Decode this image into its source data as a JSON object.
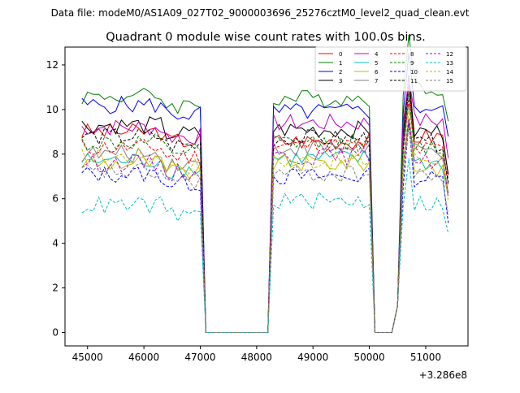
{
  "chart_data": {
    "type": "line",
    "suptitle": "Data file: modeM0/AS1A09_027T02_9000003696_25276cztM0_level2_quad_clean.evt",
    "title": "Quadrant 0 module wise count rates with 100.0s bins.",
    "xlabel": "",
    "ylabel": "",
    "x_offset_label": "+3.286e8",
    "xlim": [
      44600,
      51750
    ],
    "ylim": [
      -0.6,
      12.8
    ],
    "xticks": [
      45000,
      46000,
      47000,
      48000,
      49000,
      50000,
      51000
    ],
    "yticks": [
      0,
      2,
      4,
      6,
      8,
      10,
      12
    ],
    "grid": false,
    "legend_position": "top-right",
    "legend_columns": 4,
    "gaps": [
      [
        47100,
        48200
      ],
      [
        50100,
        50400
      ]
    ],
    "x_segments": [
      [
        44900,
        47000
      ],
      [
        48300,
        50000
      ],
      [
        50500,
        51400
      ]
    ],
    "series": [
      {
        "name": "0",
        "color": "#ff0000",
        "dash": "solid",
        "levels": [
          9.0,
          8.6,
          8.8
        ]
      },
      {
        "name": "1",
        "color": "#008000",
        "dash": "solid",
        "levels": [
          10.6,
          10.5,
          11.0
        ]
      },
      {
        "name": "2",
        "color": "#0000ff",
        "dash": "solid",
        "levels": [
          10.2,
          9.9,
          10.1
        ]
      },
      {
        "name": "3",
        "color": "#000000",
        "dash": "solid",
        "levels": [
          9.3,
          9.1,
          9.0
        ]
      },
      {
        "name": "4",
        "color": "#bf00bf",
        "dash": "solid",
        "levels": [
          9.2,
          9.4,
          9.5
        ]
      },
      {
        "name": "5",
        "color": "#00bfbf",
        "dash": "solid",
        "levels": [
          7.7,
          7.8,
          7.6
        ]
      },
      {
        "name": "6",
        "color": "#bfbf00",
        "dash": "solid",
        "levels": [
          7.6,
          7.6,
          7.4
        ]
      },
      {
        "name": "7",
        "color": "#808080",
        "dash": "solid",
        "levels": [
          8.0,
          8.3,
          8.1
        ]
      },
      {
        "name": "8",
        "color": "#ff0000",
        "dash": "dashed",
        "levels": [
          8.3,
          8.4,
          8.2
        ]
      },
      {
        "name": "9",
        "color": "#008000",
        "dash": "dashed",
        "levels": [
          8.5,
          8.5,
          8.3
        ]
      },
      {
        "name": "10",
        "color": "#0000ff",
        "dash": "dashed",
        "levels": [
          7.1,
          7.0,
          6.9
        ]
      },
      {
        "name": "11",
        "color": "#000000",
        "dash": "dashed",
        "levels": [
          8.8,
          8.7,
          8.5
        ]
      },
      {
        "name": "12",
        "color": "#bf00bf",
        "dash": "dashed",
        "levels": [
          7.6,
          7.9,
          7.7
        ]
      },
      {
        "name": "13",
        "color": "#00bfbf",
        "dash": "dashed",
        "levels": [
          5.7,
          5.9,
          5.8
        ]
      },
      {
        "name": "14",
        "color": "#bfbf00",
        "dash": "dashed",
        "levels": [
          7.9,
          7.7,
          7.8
        ]
      },
      {
        "name": "15",
        "color": "#808080",
        "dash": "dashed",
        "levels": [
          7.2,
          7.1,
          7.0
        ]
      }
    ]
  }
}
